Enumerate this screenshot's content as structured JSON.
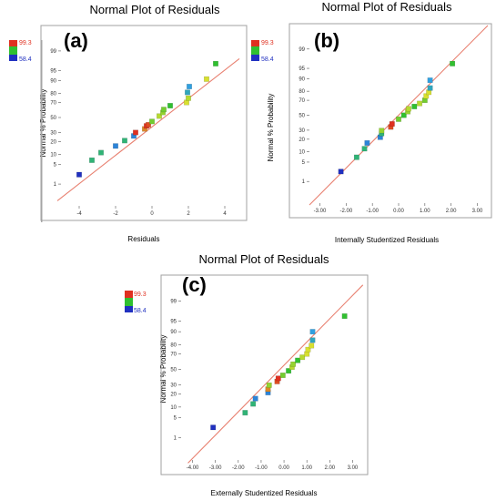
{
  "figure": {
    "colors": {
      "high": "#e03020",
      "mid": "#30c030",
      "low": "#2030c0",
      "yellow": "#d8e030",
      "cyan": "#30a0e0",
      "line": "#e88070",
      "frame": "#a0a0a0"
    }
  },
  "chart_data": [
    {
      "type": "scatter",
      "panel_label": "(a)",
      "title": "Normal Plot of Residuals",
      "xlabel": "Residuals",
      "ylabel": "Normal % Probability",
      "xlim": [
        -5,
        5
      ],
      "x_ticks": [
        "-4",
        "-2",
        "0",
        "2",
        "4"
      ],
      "x_tick_values": [
        -4,
        -2,
        0,
        2,
        4
      ],
      "y_ticks": [
        "1",
        "5",
        "10",
        "20",
        "30",
        "50",
        "70",
        "80",
        "90",
        "95",
        "99"
      ],
      "y_tick_values": [
        1,
        5,
        10,
        20,
        30,
        50,
        70,
        80,
        90,
        95,
        99
      ],
      "legend": {
        "high": "99.3",
        "low": "58.4"
      },
      "fit_line": {
        "x": [
          -5.2,
          4.8
        ],
        "y": [
          0.18,
          98.0
        ]
      },
      "points": [
        {
          "x": -4.0,
          "y": 2.3,
          "c": 0.0
        },
        {
          "x": -3.3,
          "y": 6.8,
          "c": 0.35
        },
        {
          "x": -2.8,
          "y": 11.0,
          "c": 0.35
        },
        {
          "x": -2.0,
          "y": 16.0,
          "c": 0.15
        },
        {
          "x": -1.5,
          "y": 21.0,
          "c": 0.35
        },
        {
          "x": -1.0,
          "y": 26.0,
          "c": 0.15
        },
        {
          "x": -0.9,
          "y": 30.0,
          "c": 1.0
        },
        {
          "x": -0.4,
          "y": 34.5,
          "c": 0.85
        },
        {
          "x": -0.3,
          "y": 38.5,
          "c": 1.0
        },
        {
          "x": -0.2,
          "y": 40.0,
          "c": 0.95
        },
        {
          "x": 0.0,
          "y": 44.5,
          "c": 0.55
        },
        {
          "x": 0.4,
          "y": 52.0,
          "c": 0.65
        },
        {
          "x": 0.6,
          "y": 57.0,
          "c": 0.6
        },
        {
          "x": 0.65,
          "y": 61.0,
          "c": 0.55
        },
        {
          "x": 1.0,
          "y": 66.0,
          "c": 0.45
        },
        {
          "x": 1.9,
          "y": 70.0,
          "c": 0.7
        },
        {
          "x": 2.0,
          "y": 75.0,
          "c": 0.65
        },
        {
          "x": 1.95,
          "y": 81.0,
          "c": 0.25
        },
        {
          "x": 2.05,
          "y": 86.0,
          "c": 0.2
        },
        {
          "x": 3.0,
          "y": 91.0,
          "c": 0.7
        },
        {
          "x": 3.5,
          "y": 97.0,
          "c": 0.45
        }
      ]
    },
    {
      "type": "scatter",
      "panel_label": "(b)",
      "title": "Normal Plot of Residuals",
      "xlabel": "Internally Studentized Residuals",
      "ylabel": "Normal % Probability",
      "xlim": [
        -3.4,
        3.4
      ],
      "x_ticks": [
        "-3.00",
        "-2.00",
        "-1.00",
        "0.00",
        "1.00",
        "2.00",
        "3.00"
      ],
      "x_tick_values": [
        -3,
        -2,
        -1,
        0,
        1,
        2,
        3
      ],
      "y_ticks": [
        "1",
        "5",
        "10",
        "20",
        "30",
        "50",
        "70",
        "80",
        "90",
        "95",
        "99"
      ],
      "y_tick_values": [
        1,
        5,
        10,
        20,
        30,
        50,
        70,
        80,
        90,
        95,
        99
      ],
      "legend": {
        "high": "99.3",
        "low": "58.4"
      },
      "fit_line": {
        "x": [
          -3.4,
          3.4
        ],
        "y": [
          0.08,
          99.92
        ]
      },
      "points": [
        {
          "x": -2.2,
          "y": 2.4,
          "c": 0.0
        },
        {
          "x": -1.6,
          "y": 7.0,
          "c": 0.35
        },
        {
          "x": -1.3,
          "y": 12.0,
          "c": 0.35
        },
        {
          "x": -1.2,
          "y": 16.5,
          "c": 0.15
        },
        {
          "x": -0.7,
          "y": 22.0,
          "c": 0.15
        },
        {
          "x": -0.65,
          "y": 26.0,
          "c": 0.35
        },
        {
          "x": -0.65,
          "y": 29.5,
          "c": 0.6
        },
        {
          "x": -0.3,
          "y": 34.0,
          "c": 0.95
        },
        {
          "x": -0.25,
          "y": 38.0,
          "c": 1.0
        },
        {
          "x": 0.0,
          "y": 44.5,
          "c": 0.55
        },
        {
          "x": 0.2,
          "y": 50.0,
          "c": 0.45
        },
        {
          "x": 0.35,
          "y": 55.0,
          "c": 0.6
        },
        {
          "x": 0.38,
          "y": 59.0,
          "c": 0.65
        },
        {
          "x": 0.6,
          "y": 62.0,
          "c": 0.45
        },
        {
          "x": 0.8,
          "y": 66.0,
          "c": 0.65
        },
        {
          "x": 1.0,
          "y": 70.0,
          "c": 0.55
        },
        {
          "x": 1.05,
          "y": 75.0,
          "c": 0.7
        },
        {
          "x": 1.15,
          "y": 79.0,
          "c": 0.7
        },
        {
          "x": 1.2,
          "y": 83.0,
          "c": 0.25
        },
        {
          "x": 1.2,
          "y": 89.0,
          "c": 0.2
        },
        {
          "x": 2.05,
          "y": 96.5,
          "c": 0.45
        }
      ]
    },
    {
      "type": "scatter",
      "panel_label": "(c)",
      "title": "Normal Plot of Residuals",
      "xlabel": "Externally Studentized Residuals",
      "ylabel": "Normal % Probability",
      "xlim": [
        -4.5,
        3.5
      ],
      "x_ticks": [
        "-4.00",
        "-3.00",
        "-2.00",
        "-1.00",
        "0.00",
        "1.00",
        "2.00",
        "3.00"
      ],
      "x_tick_values": [
        -4,
        -3,
        -2,
        -1,
        0,
        1,
        2,
        3
      ],
      "y_ticks": [
        "1",
        "5",
        "10",
        "20",
        "30",
        "50",
        "70",
        "80",
        "90",
        "95",
        "99"
      ],
      "y_tick_values": [
        1,
        5,
        10,
        20,
        30,
        50,
        70,
        80,
        90,
        95,
        99
      ],
      "legend": {
        "high": "99.3",
        "low": "58.4"
      },
      "fit_line": {
        "x": [
          -4.2,
          3.45
        ],
        "y": [
          0.07,
          99.8
        ]
      },
      "points": [
        {
          "x": -3.1,
          "y": 2.4,
          "c": 0.0
        },
        {
          "x": -1.7,
          "y": 7.0,
          "c": 0.35
        },
        {
          "x": -1.35,
          "y": 12.0,
          "c": 0.35
        },
        {
          "x": -1.25,
          "y": 16.0,
          "c": 0.15
        },
        {
          "x": -0.7,
          "y": 21.5,
          "c": 0.15
        },
        {
          "x": -0.7,
          "y": 25.0,
          "c": 0.85
        },
        {
          "x": -0.65,
          "y": 29.5,
          "c": 0.6
        },
        {
          "x": -0.3,
          "y": 34.0,
          "c": 0.95
        },
        {
          "x": -0.25,
          "y": 38.0,
          "c": 1.0
        },
        {
          "x": -0.05,
          "y": 42.0,
          "c": 0.55
        },
        {
          "x": 0.2,
          "y": 48.0,
          "c": 0.45
        },
        {
          "x": 0.35,
          "y": 53.0,
          "c": 0.65
        },
        {
          "x": 0.4,
          "y": 57.0,
          "c": 0.6
        },
        {
          "x": 0.6,
          "y": 62.0,
          "c": 0.45
        },
        {
          "x": 0.8,
          "y": 66.0,
          "c": 0.65
        },
        {
          "x": 1.0,
          "y": 70.0,
          "c": 0.7
        },
        {
          "x": 1.05,
          "y": 75.0,
          "c": 0.7
        },
        {
          "x": 1.2,
          "y": 79.0,
          "c": 0.7
        },
        {
          "x": 1.25,
          "y": 84.0,
          "c": 0.25
        },
        {
          "x": 1.25,
          "y": 90.0,
          "c": 0.2
        },
        {
          "x": 2.65,
          "y": 96.5,
          "c": 0.45
        }
      ]
    }
  ]
}
